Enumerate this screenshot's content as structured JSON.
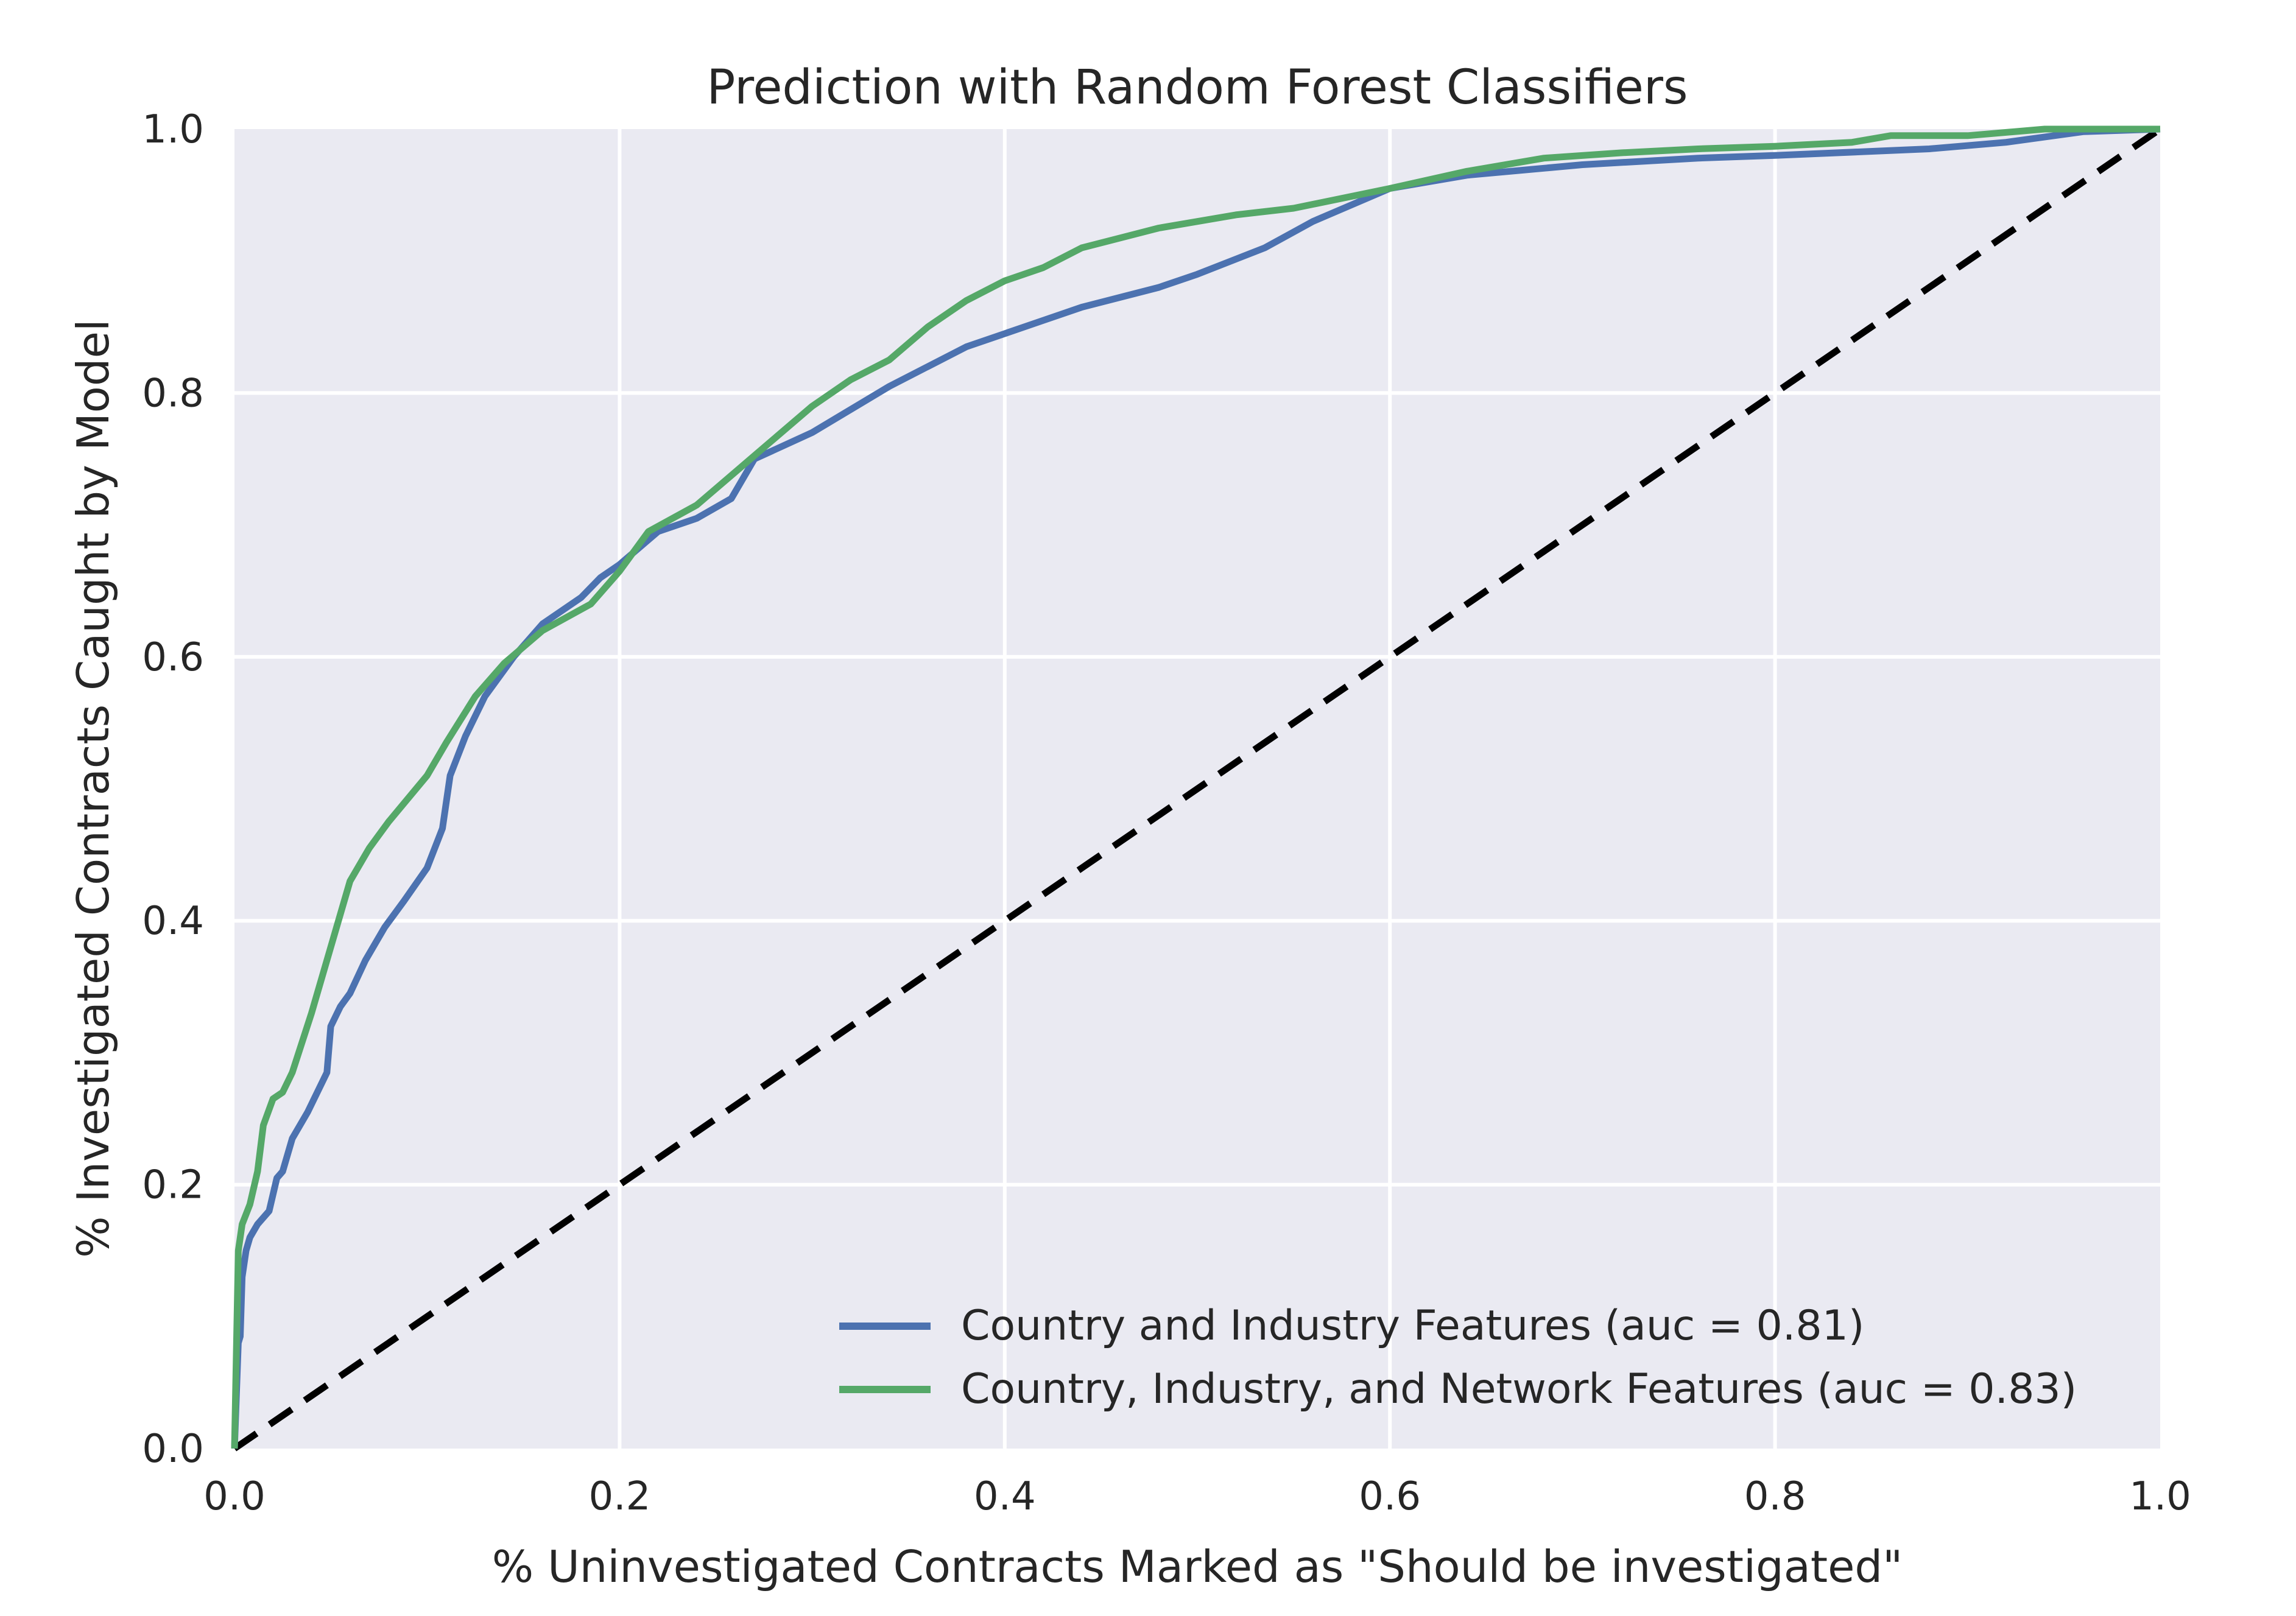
{
  "chart_data": {
    "type": "line",
    "title": "Prediction with Random Forest Classifiers",
    "xlabel": "% Uninvestigated Contracts Marked as \"Should be investigated\"",
    "ylabel": "% Investigated Contracts Caught by Model",
    "xlim": [
      0.0,
      1.0
    ],
    "ylim": [
      0.0,
      1.0
    ],
    "x_ticks": [
      "0.0",
      "0.2",
      "0.4",
      "0.6",
      "0.8",
      "1.0"
    ],
    "y_ticks": [
      "0.0",
      "0.2",
      "0.4",
      "0.6",
      "0.8",
      "1.0"
    ],
    "grid": true,
    "legend_position": "lower right",
    "series": [
      {
        "name": "Country and Industry Features (auc = 0.81)",
        "color": "#4c72b0",
        "style": "solid",
        "x": [
          0.0,
          0.002,
          0.003,
          0.004,
          0.006,
          0.008,
          0.012,
          0.018,
          0.022,
          0.025,
          0.03,
          0.038,
          0.048,
          0.05,
          0.055,
          0.06,
          0.068,
          0.078,
          0.088,
          0.1,
          0.108,
          0.112,
          0.12,
          0.13,
          0.145,
          0.16,
          0.18,
          0.19,
          0.2,
          0.22,
          0.24,
          0.258,
          0.27,
          0.3,
          0.34,
          0.38,
          0.4,
          0.42,
          0.44,
          0.48,
          0.5,
          0.535,
          0.56,
          0.6,
          0.64,
          0.7,
          0.76,
          0.8,
          0.88,
          0.92,
          0.96,
          1.0
        ],
        "y": [
          0.0,
          0.08,
          0.085,
          0.13,
          0.15,
          0.16,
          0.17,
          0.18,
          0.205,
          0.21,
          0.235,
          0.255,
          0.285,
          0.32,
          0.335,
          0.345,
          0.37,
          0.395,
          0.415,
          0.44,
          0.47,
          0.51,
          0.54,
          0.57,
          0.6,
          0.625,
          0.645,
          0.66,
          0.67,
          0.695,
          0.705,
          0.72,
          0.75,
          0.77,
          0.805,
          0.835,
          0.845,
          0.855,
          0.865,
          0.88,
          0.89,
          0.91,
          0.93,
          0.955,
          0.965,
          0.973,
          0.978,
          0.98,
          0.985,
          0.99,
          0.998,
          1.0
        ]
      },
      {
        "name": "Country, Industry, and Network Features (auc = 0.83)",
        "color": "#55a868",
        "style": "solid",
        "x": [
          0.0,
          0.002,
          0.004,
          0.008,
          0.012,
          0.015,
          0.02,
          0.025,
          0.03,
          0.04,
          0.05,
          0.06,
          0.07,
          0.08,
          0.1,
          0.11,
          0.125,
          0.14,
          0.16,
          0.185,
          0.2,
          0.215,
          0.24,
          0.26,
          0.28,
          0.3,
          0.32,
          0.34,
          0.36,
          0.38,
          0.4,
          0.42,
          0.44,
          0.48,
          0.52,
          0.55,
          0.6,
          0.64,
          0.68,
          0.72,
          0.76,
          0.8,
          0.84,
          0.86,
          0.9,
          0.94,
          1.0
        ],
        "y": [
          0.0,
          0.15,
          0.17,
          0.185,
          0.21,
          0.245,
          0.265,
          0.27,
          0.285,
          0.33,
          0.38,
          0.43,
          0.455,
          0.475,
          0.51,
          0.535,
          0.57,
          0.595,
          0.62,
          0.64,
          0.665,
          0.695,
          0.715,
          0.74,
          0.765,
          0.79,
          0.81,
          0.825,
          0.85,
          0.87,
          0.885,
          0.895,
          0.91,
          0.925,
          0.935,
          0.94,
          0.955,
          0.968,
          0.978,
          0.982,
          0.985,
          0.987,
          0.99,
          0.995,
          0.995,
          1.0,
          1.0
        ]
      },
      {
        "name": "",
        "color": "#000000",
        "style": "dashed",
        "x": [
          0.0,
          1.0
        ],
        "y": [
          0.0,
          1.0
        ]
      }
    ]
  }
}
